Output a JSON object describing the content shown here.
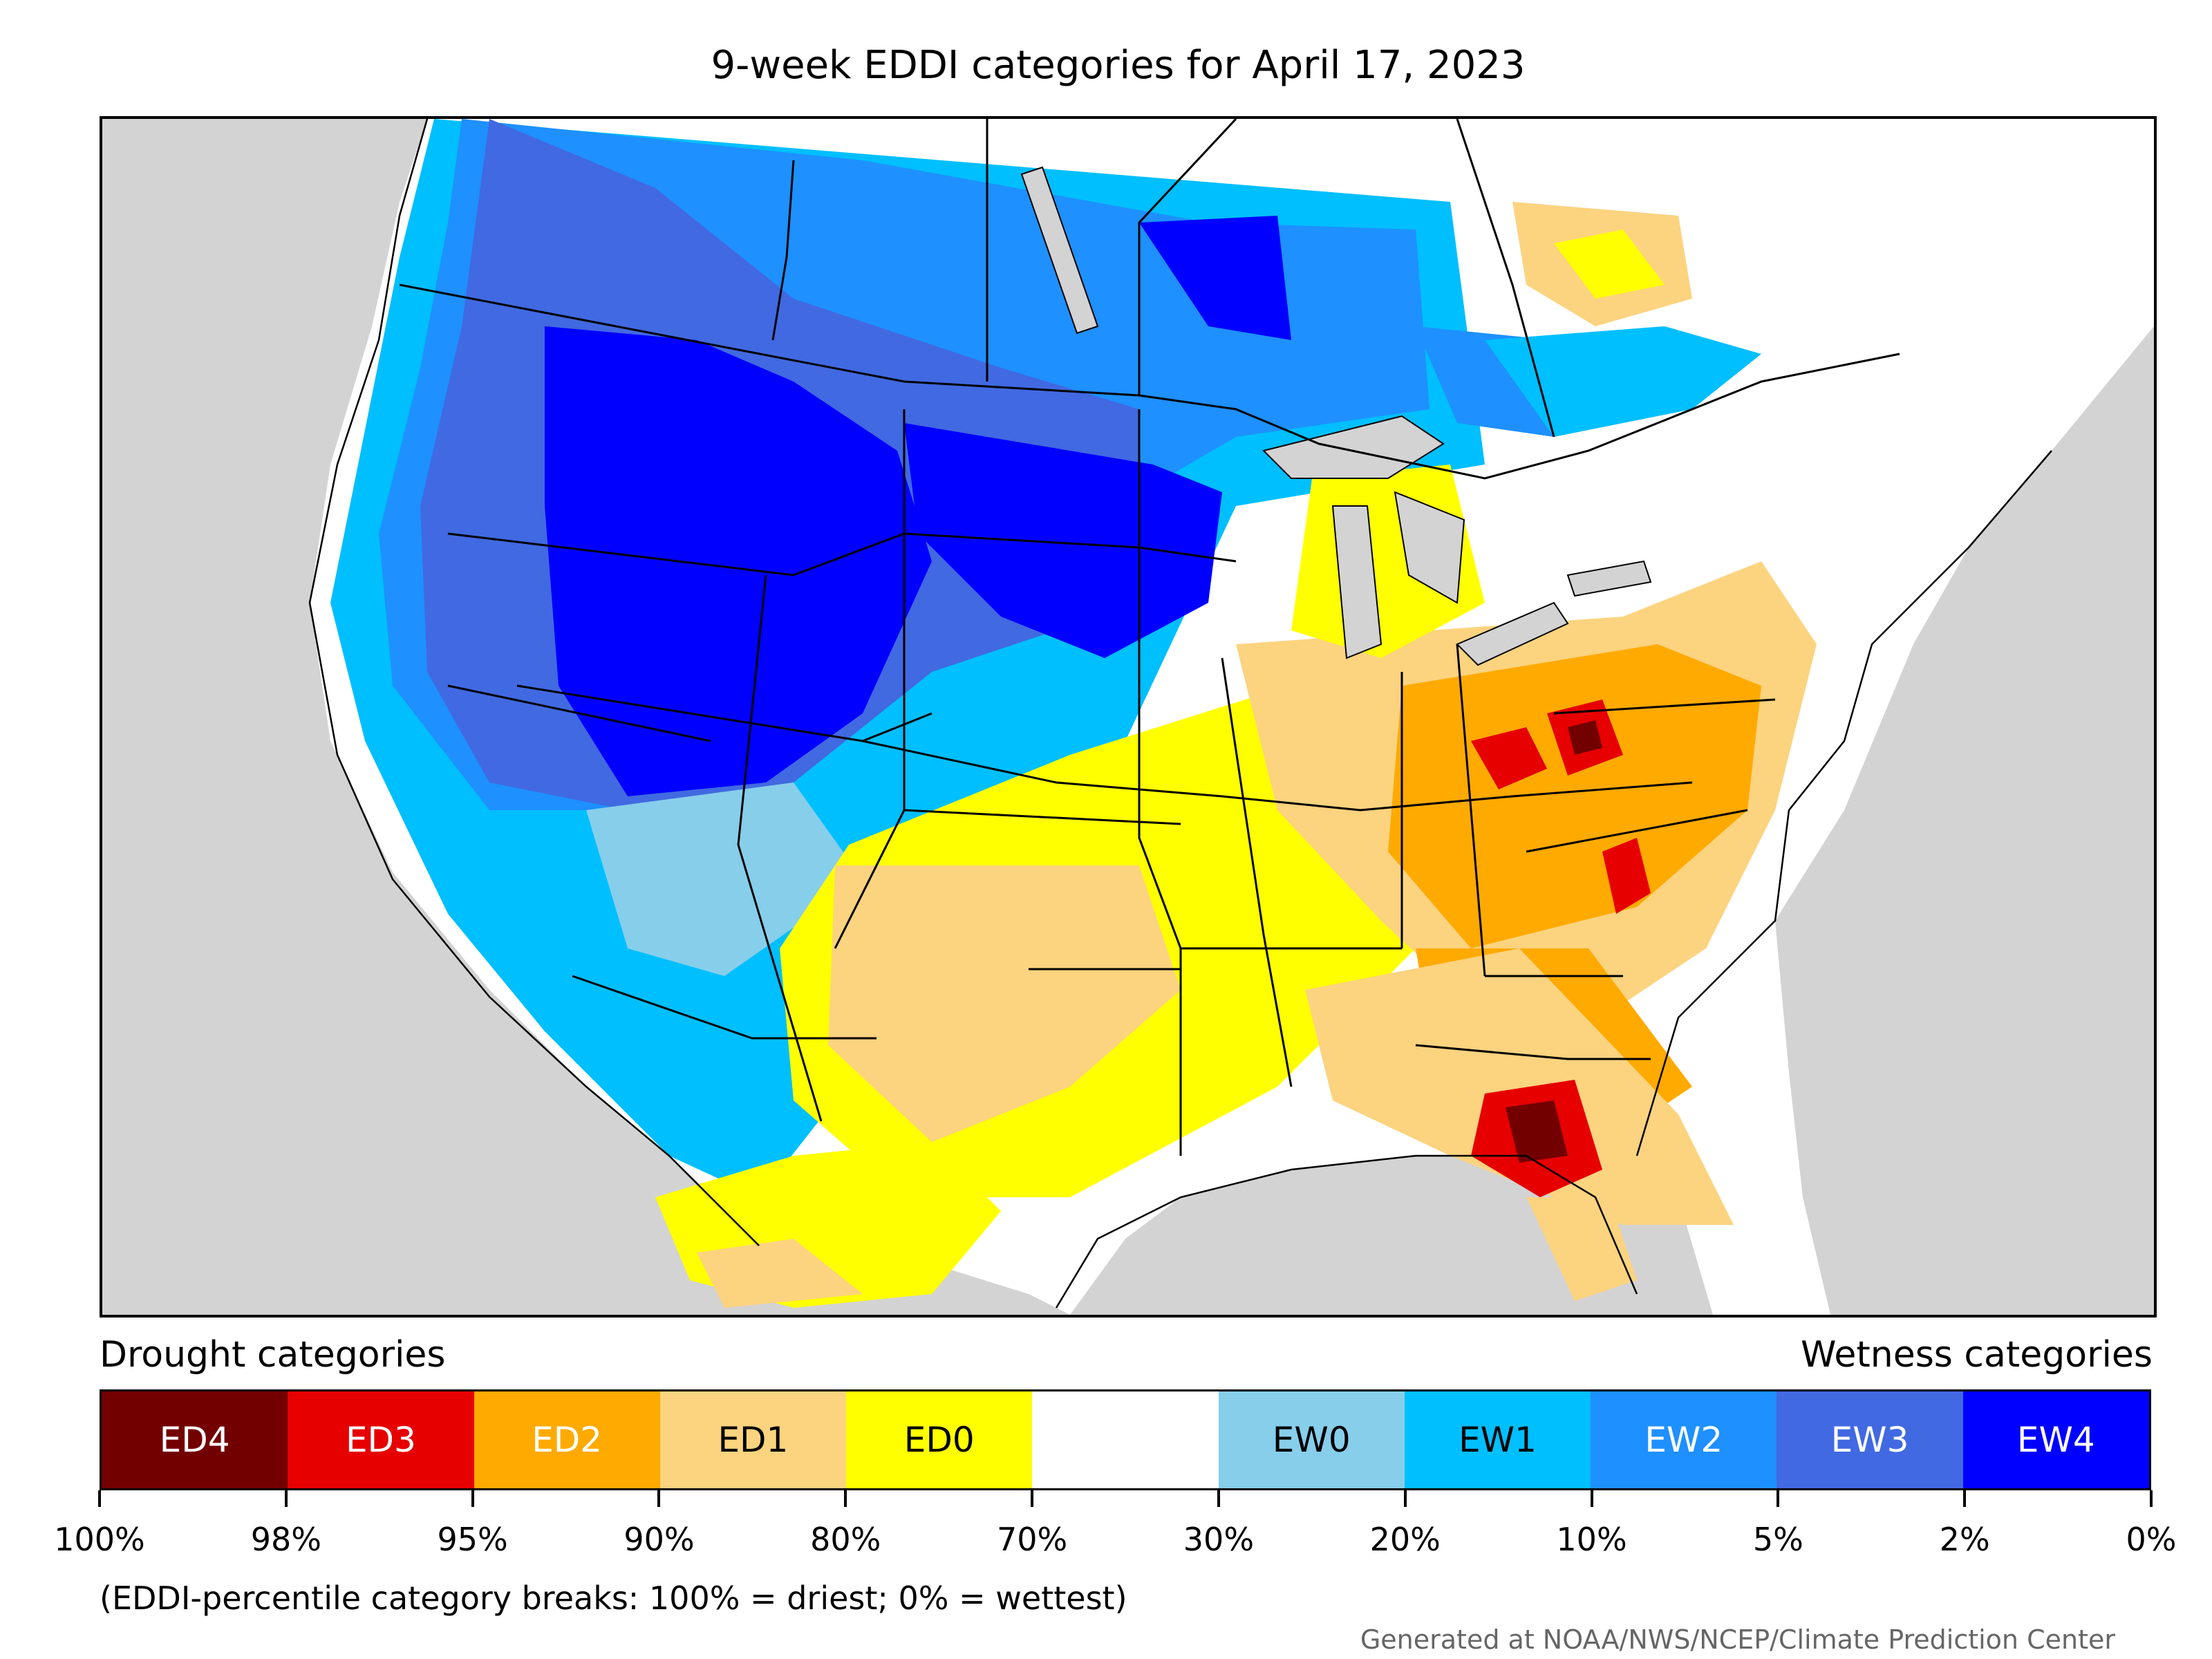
{
  "title": "9-week EDDI categories for April 17, 2023",
  "legend": {
    "drought_heading": "Drought categories",
    "wetness_heading": "Wetness categories",
    "categories": [
      {
        "label": "ED4",
        "color": "#730000",
        "text_color": "#ffffff"
      },
      {
        "label": "ED3",
        "color": "#e60000",
        "text_color": "#ffffff"
      },
      {
        "label": "ED2",
        "color": "#ffaa00",
        "text_color": "#ffffff"
      },
      {
        "label": "ED1",
        "color": "#fcd37f",
        "text_color": "#000000"
      },
      {
        "label": "ED0",
        "color": "#ffff00",
        "text_color": "#000000"
      },
      {
        "label": "",
        "color": "#ffffff",
        "text_color": "#000000"
      },
      {
        "label": "EW0",
        "color": "#87ceeb",
        "text_color": "#000000"
      },
      {
        "label": "EW1",
        "color": "#00bfff",
        "text_color": "#000000"
      },
      {
        "label": "EW2",
        "color": "#1e90ff",
        "text_color": "#ffffff"
      },
      {
        "label": "EW3",
        "color": "#4169e1",
        "text_color": "#ffffff"
      },
      {
        "label": "EW4",
        "color": "#0000ff",
        "text_color": "#ffffff"
      }
    ],
    "ticks": [
      "100%",
      "98%",
      "95%",
      "90%",
      "80%",
      "70%",
      "30%",
      "20%",
      "10%",
      "5%",
      "2%",
      "0%"
    ]
  },
  "note": "(EDDI-percentile category breaks: 100% = driest; 0% = wettest)",
  "credit": "Generated at NOAA/NWS/NCEP/Climate Prediction Center",
  "map_colors": {
    "ocean_land_outside": "#d3d3d3",
    "no_data": "#ffffff",
    "boundaries": "#000000"
  }
}
